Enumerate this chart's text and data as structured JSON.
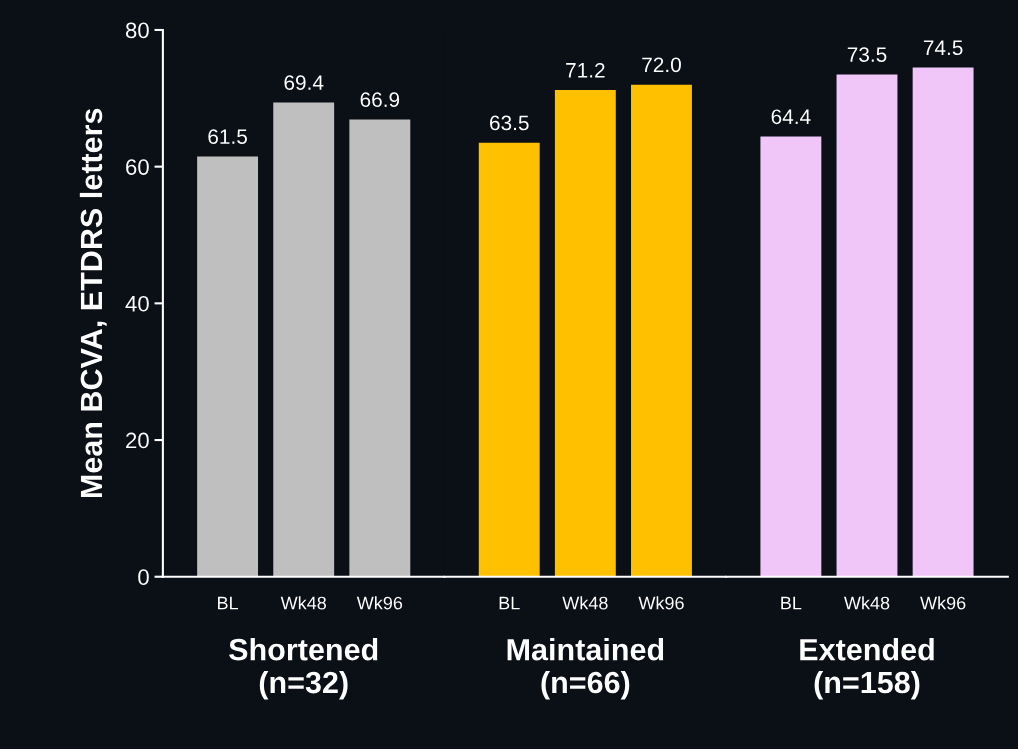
{
  "chart_data": [
    {
      "type": "bar",
      "categories": [
        "BL",
        "Wk48",
        "Wk96"
      ],
      "values": [
        61.5,
        69.4,
        66.9
      ],
      "value_labels": [
        "61.5",
        "69.4",
        "66.9"
      ],
      "color": "#bfbfbf",
      "ylim": [
        0,
        80
      ],
      "yticks": [
        0,
        20,
        40,
        60,
        80
      ],
      "ylabel": "Mean BCVA, ETDRS letters",
      "xlabel": "Shortened\n(n=32)"
    },
    {
      "type": "bar",
      "categories": [
        "BL",
        "Wk48",
        "Wk96"
      ],
      "values": [
        63.5,
        71.2,
        72.0
      ],
      "value_labels": [
        "63.5",
        "71.2",
        "72.0"
      ],
      "color": "#ffc000",
      "ylim": [
        0,
        80
      ],
      "xlabel": "Maintained\n(n=66)",
      "tick_labels": "x"
    },
    {
      "type": "bar",
      "categories": [
        "BL",
        "Wk48",
        "Wk96"
      ],
      "values": [
        64.4,
        73.5,
        74.5
      ],
      "value_labels": [
        "64.4",
        "73.5",
        "74.5"
      ],
      "color": "#f0c6f8",
      "ylim": [
        0,
        80
      ],
      "xlabel": "Extended\n(n=158)",
      "tick_labels": "x"
    }
  ]
}
